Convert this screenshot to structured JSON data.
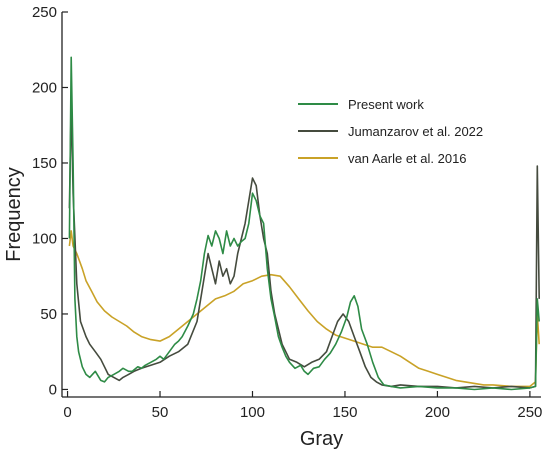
{
  "chart_data": {
    "type": "line",
    "xlabel": "Gray",
    "ylabel": "Frequency",
    "xlim": [
      -3,
      256
    ],
    "ylim": [
      -5,
      250
    ],
    "x_ticks": [
      0,
      50,
      100,
      150,
      200,
      250
    ],
    "y_ticks": [
      0,
      50,
      100,
      150,
      200,
      250
    ],
    "legend_position": "right",
    "series": [
      {
        "name": "Present work",
        "color": "#2e8b46",
        "points": [
          [
            1,
            100
          ],
          [
            2,
            220
          ],
          [
            3,
            150
          ],
          [
            4,
            60
          ],
          [
            5,
            35
          ],
          [
            6,
            25
          ],
          [
            8,
            15
          ],
          [
            10,
            10
          ],
          [
            12,
            8
          ],
          [
            15,
            12
          ],
          [
            18,
            6
          ],
          [
            20,
            5
          ],
          [
            22,
            8
          ],
          [
            25,
            10
          ],
          [
            28,
            12
          ],
          [
            30,
            14
          ],
          [
            33,
            12
          ],
          [
            35,
            12
          ],
          [
            38,
            15
          ],
          [
            40,
            14
          ],
          [
            42,
            16
          ],
          [
            45,
            18
          ],
          [
            48,
            20
          ],
          [
            50,
            22
          ],
          [
            52,
            20
          ],
          [
            55,
            25
          ],
          [
            58,
            30
          ],
          [
            60,
            32
          ],
          [
            62,
            35
          ],
          [
            65,
            42
          ],
          [
            68,
            50
          ],
          [
            70,
            60
          ],
          [
            72,
            72
          ],
          [
            74,
            90
          ],
          [
            76,
            102
          ],
          [
            78,
            95
          ],
          [
            80,
            105
          ],
          [
            82,
            100
          ],
          [
            84,
            90
          ],
          [
            86,
            105
          ],
          [
            88,
            95
          ],
          [
            90,
            100
          ],
          [
            92,
            95
          ],
          [
            94,
            98
          ],
          [
            96,
            100
          ],
          [
            98,
            110
          ],
          [
            100,
            130
          ],
          [
            102,
            125
          ],
          [
            104,
            115
          ],
          [
            106,
            110
          ],
          [
            108,
            80
          ],
          [
            110,
            60
          ],
          [
            112,
            48
          ],
          [
            114,
            35
          ],
          [
            116,
            28
          ],
          [
            118,
            22
          ],
          [
            120,
            18
          ],
          [
            123,
            14
          ],
          [
            126,
            16
          ],
          [
            128,
            12
          ],
          [
            130,
            10
          ],
          [
            133,
            14
          ],
          [
            136,
            15
          ],
          [
            139,
            20
          ],
          [
            142,
            24
          ],
          [
            145,
            30
          ],
          [
            148,
            38
          ],
          [
            151,
            48
          ],
          [
            153,
            58
          ],
          [
            155,
            62
          ],
          [
            157,
            55
          ],
          [
            159,
            40
          ],
          [
            162,
            30
          ],
          [
            165,
            18
          ],
          [
            168,
            8
          ],
          [
            171,
            3
          ],
          [
            175,
            2
          ],
          [
            180,
            1
          ],
          [
            190,
            2
          ],
          [
            200,
            1
          ],
          [
            210,
            1
          ],
          [
            220,
            0
          ],
          [
            230,
            1
          ],
          [
            240,
            0
          ],
          [
            250,
            1
          ],
          [
            253,
            2
          ],
          [
            254,
            60
          ],
          [
            255,
            45
          ]
        ]
      },
      {
        "name": "Jumanzarov et al. 2022",
        "color": "#454b3e",
        "points": [
          [
            1,
            120
          ],
          [
            2,
            190
          ],
          [
            3,
            130
          ],
          [
            5,
            70
          ],
          [
            7,
            45
          ],
          [
            10,
            35
          ],
          [
            12,
            30
          ],
          [
            15,
            25
          ],
          [
            18,
            20
          ],
          [
            20,
            15
          ],
          [
            22,
            10
          ],
          [
            25,
            8
          ],
          [
            28,
            6
          ],
          [
            30,
            8
          ],
          [
            33,
            10
          ],
          [
            36,
            12
          ],
          [
            40,
            14
          ],
          [
            45,
            16
          ],
          [
            50,
            18
          ],
          [
            55,
            22
          ],
          [
            60,
            25
          ],
          [
            65,
            30
          ],
          [
            70,
            45
          ],
          [
            72,
            60
          ],
          [
            74,
            75
          ],
          [
            76,
            90
          ],
          [
            78,
            80
          ],
          [
            80,
            70
          ],
          [
            82,
            85
          ],
          [
            84,
            75
          ],
          [
            86,
            80
          ],
          [
            88,
            70
          ],
          [
            90,
            75
          ],
          [
            92,
            90
          ],
          [
            94,
            100
          ],
          [
            96,
            110
          ],
          [
            98,
            125
          ],
          [
            100,
            140
          ],
          [
            102,
            135
          ],
          [
            104,
            115
          ],
          [
            106,
            100
          ],
          [
            108,
            90
          ],
          [
            110,
            65
          ],
          [
            112,
            50
          ],
          [
            114,
            40
          ],
          [
            116,
            30
          ],
          [
            118,
            25
          ],
          [
            120,
            20
          ],
          [
            124,
            18
          ],
          [
            128,
            15
          ],
          [
            132,
            18
          ],
          [
            136,
            20
          ],
          [
            140,
            25
          ],
          [
            143,
            35
          ],
          [
            146,
            45
          ],
          [
            149,
            50
          ],
          [
            152,
            45
          ],
          [
            155,
            35
          ],
          [
            158,
            25
          ],
          [
            161,
            15
          ],
          [
            164,
            8
          ],
          [
            167,
            5
          ],
          [
            170,
            3
          ],
          [
            175,
            2
          ],
          [
            180,
            3
          ],
          [
            190,
            2
          ],
          [
            200,
            2
          ],
          [
            210,
            1
          ],
          [
            220,
            2
          ],
          [
            230,
            1
          ],
          [
            240,
            2
          ],
          [
            250,
            1
          ],
          [
            253,
            2
          ],
          [
            254,
            148
          ],
          [
            255,
            60
          ]
        ]
      },
      {
        "name": "van Aarle et al. 2016",
        "color": "#c9a227",
        "points": [
          [
            1,
            95
          ],
          [
            2,
            105
          ],
          [
            3,
            95
          ],
          [
            5,
            90
          ],
          [
            8,
            80
          ],
          [
            10,
            72
          ],
          [
            13,
            65
          ],
          [
            16,
            58
          ],
          [
            20,
            52
          ],
          [
            24,
            48
          ],
          [
            28,
            45
          ],
          [
            32,
            42
          ],
          [
            36,
            38
          ],
          [
            40,
            35
          ],
          [
            45,
            33
          ],
          [
            50,
            32
          ],
          [
            55,
            35
          ],
          [
            60,
            40
          ],
          [
            65,
            45
          ],
          [
            70,
            50
          ],
          [
            75,
            55
          ],
          [
            80,
            60
          ],
          [
            85,
            62
          ],
          [
            90,
            65
          ],
          [
            95,
            70
          ],
          [
            100,
            72
          ],
          [
            105,
            75
          ],
          [
            110,
            76
          ],
          [
            115,
            75
          ],
          [
            120,
            68
          ],
          [
            125,
            60
          ],
          [
            130,
            52
          ],
          [
            135,
            45
          ],
          [
            140,
            40
          ],
          [
            145,
            36
          ],
          [
            150,
            34
          ],
          [
            155,
            32
          ],
          [
            160,
            30
          ],
          [
            165,
            28
          ],
          [
            170,
            28
          ],
          [
            175,
            25
          ],
          [
            180,
            22
          ],
          [
            185,
            18
          ],
          [
            190,
            14
          ],
          [
            195,
            12
          ],
          [
            200,
            10
          ],
          [
            205,
            8
          ],
          [
            210,
            6
          ],
          [
            215,
            5
          ],
          [
            220,
            4
          ],
          [
            225,
            3
          ],
          [
            230,
            3
          ],
          [
            240,
            2
          ],
          [
            250,
            2
          ],
          [
            253,
            5
          ],
          [
            254,
            50
          ],
          [
            255,
            30
          ]
        ]
      }
    ]
  }
}
